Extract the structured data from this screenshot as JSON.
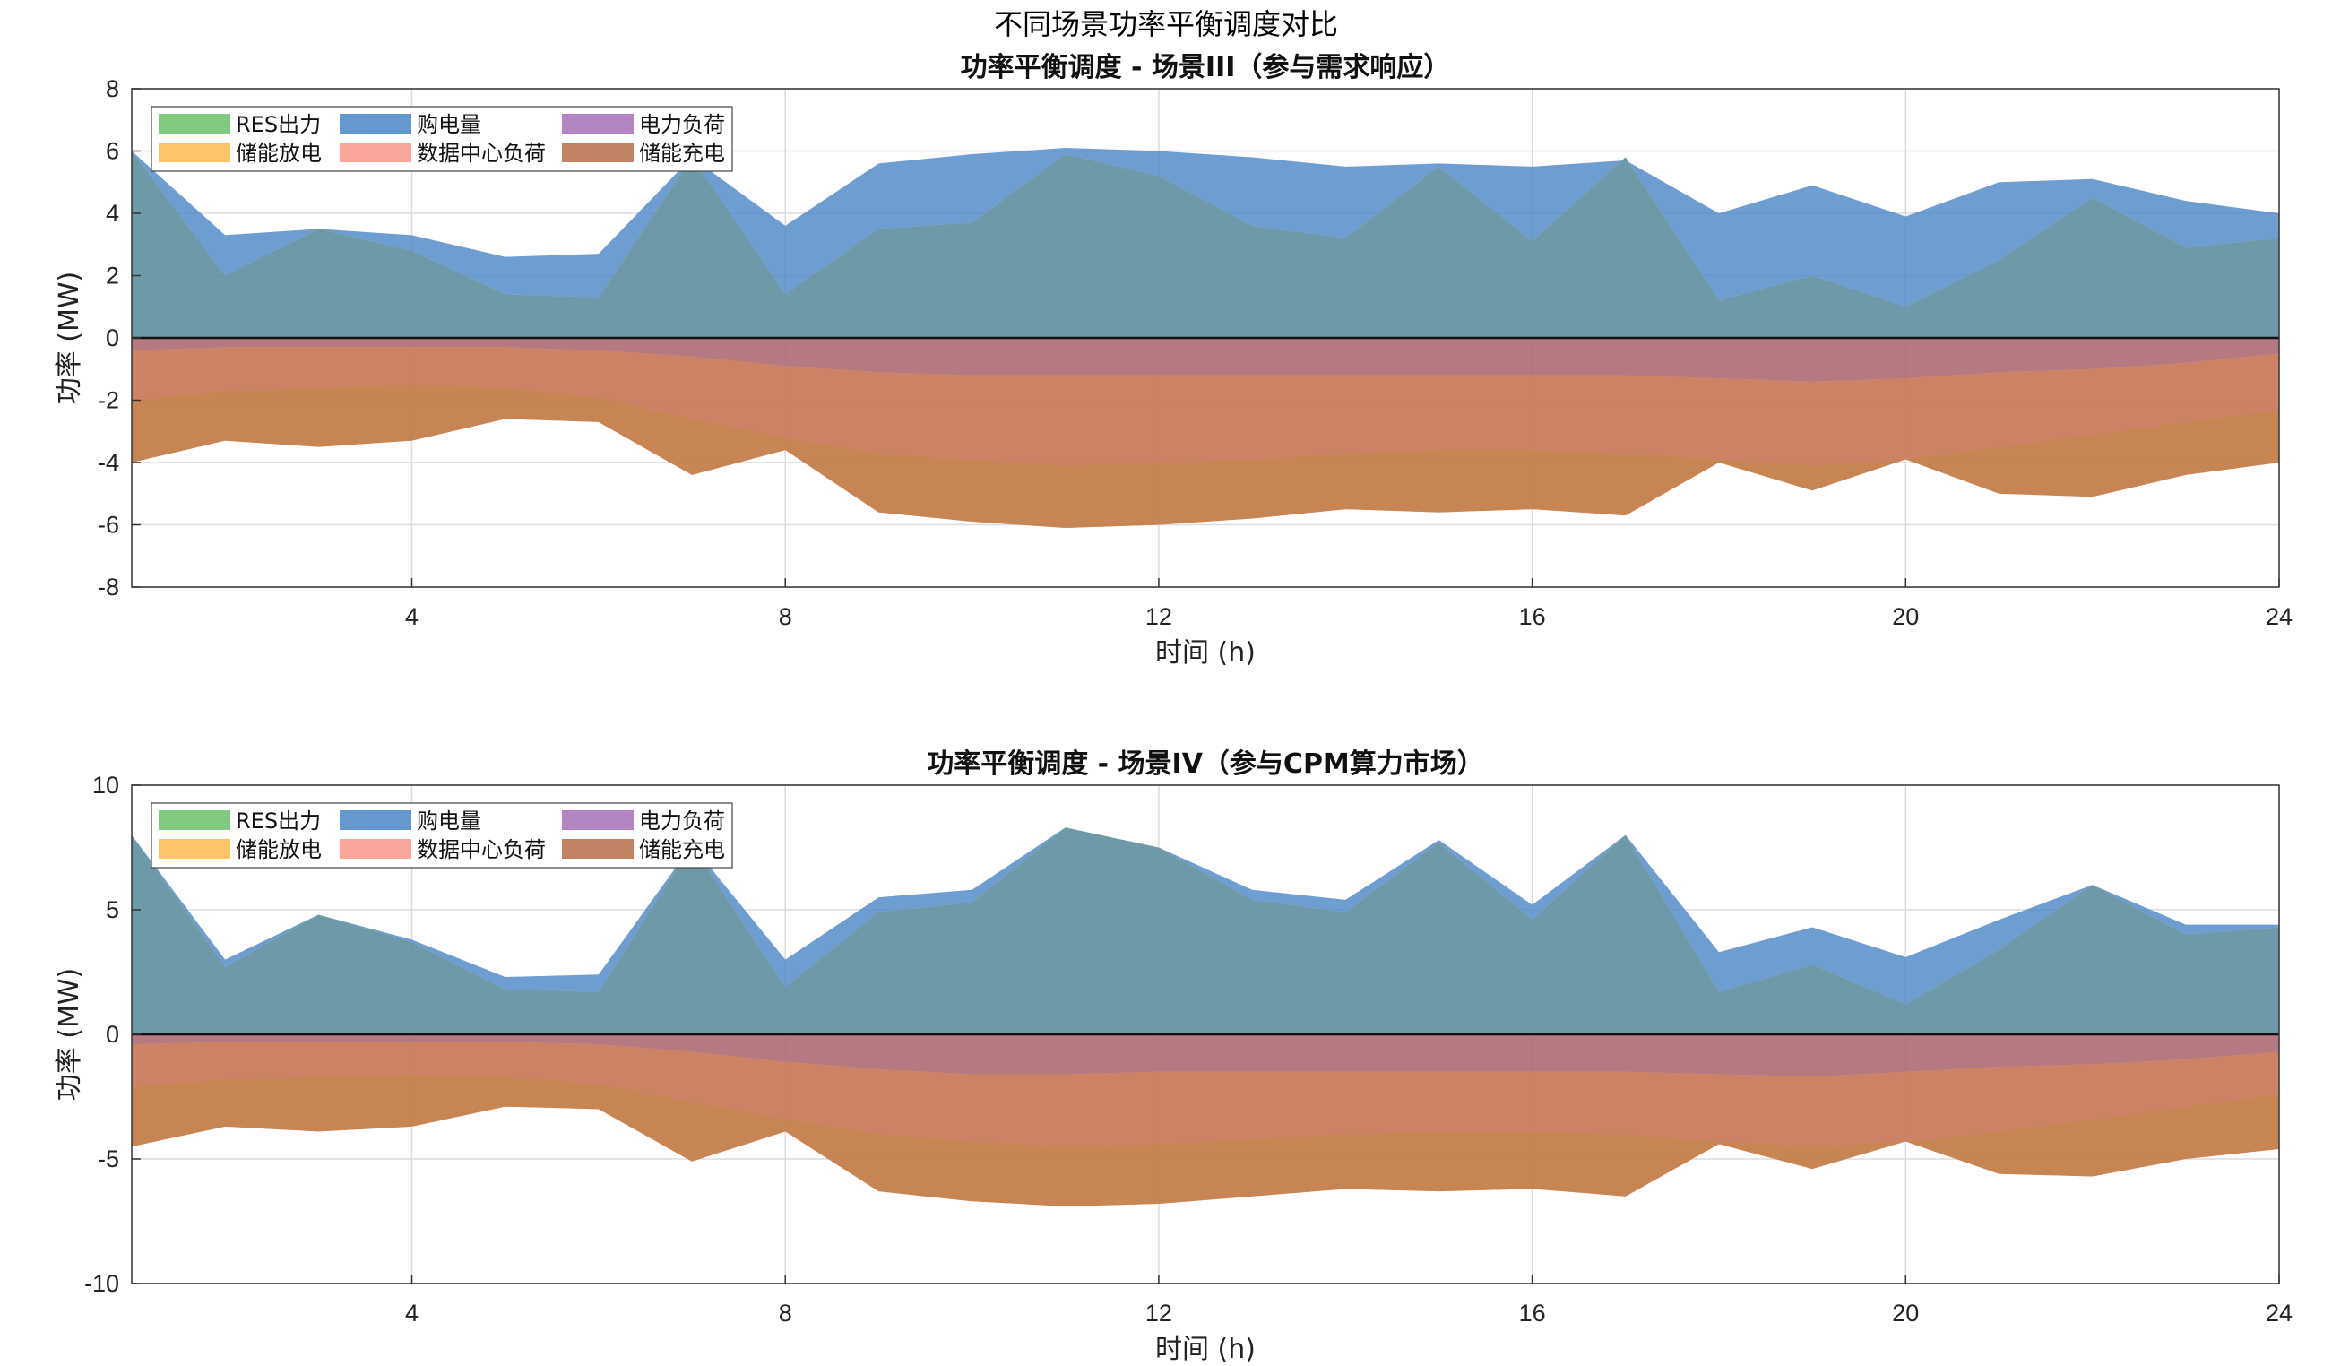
{
  "title": "不同场景功率平衡调度对比",
  "colors": {
    "RES": "#6abf69",
    "purchase": "#4a86c6",
    "load": "#a670b8",
    "discharge": "#ffb84d",
    "dc_load": "#f8988a",
    "charge": "#b56f4a"
  },
  "legend_items": [
    {
      "key": "RES",
      "label": "RES出力"
    },
    {
      "key": "purchase",
      "label": "购电量"
    },
    {
      "key": "load",
      "label": "电力负荷"
    },
    {
      "key": "discharge",
      "label": "储能放电"
    },
    {
      "key": "dc_load",
      "label": "数据中心负荷"
    },
    {
      "key": "charge",
      "label": "储能充电"
    }
  ],
  "chart_data": [
    {
      "type": "area",
      "title": "功率平衡调度 - 场景III（参与需求响应）",
      "xlabel": "时间 (h)",
      "ylabel": "功率 (MW)",
      "xlim": [
        1,
        24
      ],
      "ylim": [
        -8,
        8
      ],
      "xticks": [
        4,
        8,
        12,
        16,
        20,
        24
      ],
      "yticks": [
        -8,
        -6,
        -4,
        -2,
        0,
        2,
        4,
        6,
        8
      ],
      "grid": true,
      "legend_placement": "top-left",
      "x": [
        1,
        2,
        3,
        4,
        5,
        6,
        7,
        8,
        9,
        10,
        11,
        12,
        13,
        14,
        15,
        16,
        17,
        18,
        19,
        20,
        21,
        22,
        23,
        24
      ],
      "supply_res": [
        6.0,
        2.0,
        3.5,
        2.8,
        1.4,
        1.3,
        5.8,
        1.4,
        3.5,
        3.7,
        5.9,
        5.2,
        3.6,
        3.2,
        5.5,
        3.1,
        5.8,
        1.2,
        2.0,
        1.0,
        2.5,
        4.5,
        2.9,
        3.2
      ],
      "supply_total": [
        6.0,
        3.3,
        3.5,
        3.3,
        2.6,
        2.7,
        5.8,
        3.6,
        5.6,
        5.9,
        6.1,
        6.0,
        5.8,
        5.5,
        5.6,
        5.5,
        5.7,
        4.0,
        4.9,
        3.9,
        5.0,
        5.1,
        4.4,
        4.0
      ],
      "demand_load": [
        -0.4,
        -0.3,
        -0.3,
        -0.3,
        -0.3,
        -0.4,
        -0.6,
        -0.9,
        -1.1,
        -1.2,
        -1.2,
        -1.2,
        -1.2,
        -1.2,
        -1.2,
        -1.2,
        -1.2,
        -1.3,
        -1.4,
        -1.3,
        -1.1,
        -1.0,
        -0.8,
        -0.5
      ],
      "demand_dc": [
        -2.0,
        -1.7,
        -1.6,
        -1.5,
        -1.6,
        -1.9,
        -2.6,
        -3.2,
        -3.7,
        -3.9,
        -4.1,
        -4.0,
        -3.9,
        -3.7,
        -3.6,
        -3.6,
        -3.7,
        -3.9,
        -4.1,
        -3.9,
        -3.5,
        -3.1,
        -2.7,
        -2.3
      ],
      "demand_total": [
        -4.0,
        -3.3,
        -3.5,
        -3.3,
        -2.6,
        -2.7,
        -4.4,
        -3.6,
        -5.6,
        -5.9,
        -6.1,
        -6.0,
        -5.8,
        -5.5,
        -5.6,
        -5.5,
        -5.7,
        -4.0,
        -4.9,
        -3.9,
        -5.0,
        -5.1,
        -4.4,
        -4.0
      ]
    },
    {
      "type": "area",
      "title": "功率平衡调度 - 场景IV（参与CPM算力市场）",
      "xlabel": "时间 (h)",
      "ylabel": "功率 (MW)",
      "xlim": [
        1,
        24
      ],
      "ylim": [
        -10,
        10
      ],
      "xticks": [
        4,
        8,
        12,
        16,
        20,
        24
      ],
      "yticks": [
        -10,
        -5,
        0,
        5,
        10
      ],
      "grid": true,
      "legend_placement": "top-left",
      "x": [
        1,
        2,
        3,
        4,
        5,
        6,
        7,
        8,
        9,
        10,
        11,
        12,
        13,
        14,
        15,
        16,
        17,
        18,
        19,
        20,
        21,
        22,
        23,
        24
      ],
      "supply_res": [
        8.0,
        2.7,
        4.8,
        3.7,
        1.8,
        1.7,
        7.6,
        1.9,
        4.9,
        5.3,
        8.3,
        7.5,
        5.4,
        4.9,
        7.7,
        4.6,
        8.0,
        1.7,
        2.8,
        1.2,
        3.4,
        6.0,
        4.0,
        4.3
      ],
      "supply_total": [
        8.0,
        3.0,
        4.8,
        3.8,
        2.3,
        2.4,
        7.6,
        3.0,
        5.5,
        5.8,
        8.3,
        7.5,
        5.8,
        5.4,
        7.8,
        5.2,
        8.0,
        3.3,
        4.3,
        3.1,
        4.6,
        6.0,
        4.4,
        4.4
      ],
      "demand_load": [
        -0.4,
        -0.3,
        -0.3,
        -0.3,
        -0.3,
        -0.4,
        -0.7,
        -1.1,
        -1.4,
        -1.6,
        -1.6,
        -1.5,
        -1.5,
        -1.5,
        -1.5,
        -1.5,
        -1.5,
        -1.6,
        -1.7,
        -1.5,
        -1.3,
        -1.2,
        -1.0,
        -0.7
      ],
      "demand_dc": [
        -2.1,
        -1.8,
        -1.7,
        -1.6,
        -1.7,
        -2.0,
        -2.7,
        -3.4,
        -4.0,
        -4.3,
        -4.5,
        -4.4,
        -4.2,
        -4.0,
        -3.9,
        -3.9,
        -4.0,
        -4.3,
        -4.5,
        -4.3,
        -3.9,
        -3.4,
        -2.9,
        -2.4
      ],
      "demand_total": [
        -4.5,
        -3.7,
        -3.9,
        -3.7,
        -2.9,
        -3.0,
        -5.1,
        -3.9,
        -6.3,
        -6.7,
        -6.9,
        -6.8,
        -6.5,
        -6.2,
        -6.3,
        -6.2,
        -6.5,
        -4.4,
        -5.4,
        -4.3,
        -5.6,
        -5.7,
        -5.0,
        -4.6
      ]
    }
  ]
}
